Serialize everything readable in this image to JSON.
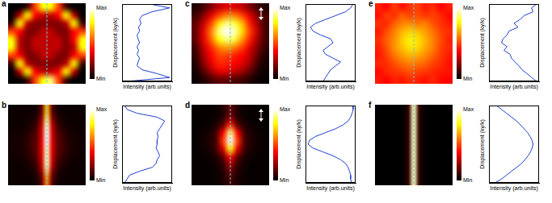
{
  "chart_data": [
    {
      "label": "a",
      "type": "line",
      "image": [
        [
          0,
          0,
          0.1,
          0.5,
          0.8,
          0.8,
          0.5,
          0.1,
          0,
          0
        ],
        [
          0,
          0.3,
          0.8,
          0.4,
          0.3,
          0.3,
          0.4,
          0.8,
          0.3,
          0
        ],
        [
          0.1,
          0.8,
          0.3,
          0.2,
          0.2,
          0.2,
          0.2,
          0.3,
          0.8,
          0.1
        ],
        [
          0.5,
          0.4,
          0.2,
          0.2,
          0.3,
          0.3,
          0.2,
          0.2,
          0.4,
          0.5
        ],
        [
          0.8,
          0.3,
          0.2,
          0.3,
          0.3,
          0.3,
          0.3,
          0.2,
          0.4,
          0.8
        ],
        [
          0.8,
          0.3,
          0.2,
          0.3,
          0.3,
          0.3,
          0.3,
          0.2,
          0.3,
          0.8
        ],
        [
          0.5,
          0.4,
          0.2,
          0.2,
          0.3,
          0.3,
          0.2,
          0.2,
          0.4,
          0.5
        ],
        [
          0.1,
          0.8,
          0.3,
          0.2,
          0.2,
          0.2,
          0.2,
          0.3,
          0.8,
          0.1
        ],
        [
          0,
          0.3,
          0.8,
          0.4,
          0.3,
          0.3,
          0.4,
          0.8,
          0.3,
          0
        ],
        [
          0,
          0,
          0.1,
          0.5,
          0.8,
          0.9,
          0.5,
          0.1,
          0,
          0
        ]
      ],
      "colorbar": {
        "range": [
          0,
          1
        ],
        "ticks": [
          {
            "value": 1,
            "label": "Max"
          },
          {
            "value": 0,
            "label": "Min"
          }
        ]
      },
      "xlabel": "Intensity (arb.units)",
      "ylabel": "Displacement (ky/k)",
      "y": [
        1,
        0.9,
        0.8,
        0.7,
        0.6,
        0.5,
        0.4,
        0.3,
        0.2,
        0.1,
        0,
        -0.1,
        -0.2,
        -0.3,
        -0.4,
        -0.5,
        -0.6,
        -0.7,
        -0.8,
        -0.9,
        -1
      ],
      "values": [
        0.55,
        0.95,
        0.6,
        0.4,
        0.35,
        0.38,
        0.33,
        0.35,
        0.3,
        0.32,
        0.35,
        0.3,
        0.33,
        0.3,
        0.35,
        0.32,
        0.3,
        0.4,
        0.7,
        0.95,
        0.1
      ],
      "xlim": [
        0,
        1
      ],
      "ylim": [
        -1,
        1
      ],
      "tick_labels": false,
      "color": "#1f3fd0"
    },
    {
      "label": "b",
      "type": "line",
      "image": [
        [
          0.02,
          0.02,
          0.02,
          0.02,
          0.02,
          0.04,
          0.15,
          0.7,
          0.15,
          0.04,
          0.02,
          0.02,
          0.02,
          0.02,
          0.02
        ],
        [
          0.02,
          0.02,
          0.02,
          0.03,
          0.05,
          0.1,
          0.3,
          0.95,
          0.3,
          0.1,
          0.05,
          0.03,
          0.02,
          0.02,
          0.02
        ],
        [
          0.03,
          0.03,
          0.04,
          0.06,
          0.1,
          0.15,
          0.35,
          1,
          0.35,
          0.15,
          0.1,
          0.06,
          0.04,
          0.03,
          0.03
        ],
        [
          0.03,
          0.03,
          0.04,
          0.06,
          0.1,
          0.15,
          0.35,
          0.95,
          0.35,
          0.15,
          0.1,
          0.06,
          0.04,
          0.03,
          0.03
        ],
        [
          0.02,
          0.02,
          0.02,
          0.03,
          0.05,
          0.1,
          0.3,
          0.95,
          0.3,
          0.1,
          0.05,
          0.03,
          0.02,
          0.02,
          0.02
        ],
        [
          0.02,
          0.02,
          0.02,
          0.02,
          0.02,
          0.04,
          0.15,
          0.6,
          0.15,
          0.04,
          0.02,
          0.02,
          0.02,
          0.02,
          0.02
        ]
      ],
      "colorbar": {
        "range": [
          0,
          1
        ],
        "ticks": [
          {
            "value": 1,
            "label": "Max"
          },
          {
            "value": 0,
            "label": "Min"
          }
        ]
      },
      "xlabel": "Intensity (arb.units)",
      "ylabel": "Displacement (ky/k)",
      "y": [
        1,
        0.9,
        0.8,
        0.7,
        0.6,
        0.5,
        0.4,
        0.3,
        0.2,
        0.1,
        0,
        -0.1,
        -0.2,
        -0.3,
        -0.4,
        -0.5,
        -0.6,
        -0.7,
        -0.8,
        -0.9,
        -1
      ],
      "values": [
        0.05,
        0.1,
        0.3,
        0.7,
        0.85,
        0.8,
        0.75,
        0.7,
        0.72,
        0.7,
        0.7,
        0.68,
        0.72,
        0.75,
        0.7,
        0.68,
        0.6,
        0.35,
        0.15,
        0.1,
        0.05
      ],
      "xlim": [
        0,
        1
      ],
      "ylim": [
        -1,
        1
      ],
      "tick_labels": false,
      "color": "#1f3fd0"
    },
    {
      "label": "c",
      "type": "line",
      "image": [
        [
          0.05,
          0.1,
          0.2,
          0.3,
          0.35,
          0.35,
          0.3,
          0.2,
          0.1,
          0.05
        ],
        [
          0.1,
          0.2,
          0.35,
          0.5,
          0.6,
          0.6,
          0.5,
          0.35,
          0.2,
          0.1
        ],
        [
          0.15,
          0.3,
          0.5,
          0.75,
          0.9,
          0.85,
          0.7,
          0.45,
          0.25,
          0.1
        ],
        [
          0.15,
          0.35,
          0.6,
          0.9,
          1,
          0.95,
          0.75,
          0.5,
          0.3,
          0.1
        ],
        [
          0.15,
          0.35,
          0.55,
          0.8,
          0.9,
          0.85,
          0.65,
          0.45,
          0.25,
          0.1
        ],
        [
          0.1,
          0.3,
          0.45,
          0.6,
          0.65,
          0.6,
          0.5,
          0.35,
          0.2,
          0.08
        ],
        [
          0.08,
          0.25,
          0.4,
          0.5,
          0.5,
          0.45,
          0.4,
          0.3,
          0.15,
          0.05
        ],
        [
          0.05,
          0.2,
          0.35,
          0.45,
          0.45,
          0.4,
          0.35,
          0.25,
          0.1,
          0.03
        ],
        [
          0.03,
          0.12,
          0.25,
          0.35,
          0.35,
          0.3,
          0.25,
          0.15,
          0.05,
          0.02
        ],
        [
          0.02,
          0.05,
          0.1,
          0.15,
          0.15,
          0.12,
          0.1,
          0.05,
          0.02,
          0.01
        ]
      ],
      "colorbar": {
        "range": [
          0,
          1
        ],
        "ticks": [
          {
            "value": 1,
            "label": "Max"
          },
          {
            "value": 0,
            "label": "Min"
          }
        ]
      },
      "xlabel": "Intensity (arb.units)",
      "ylabel": "Displacement (ky/k)",
      "y": [
        1,
        0.9,
        0.8,
        0.7,
        0.6,
        0.5,
        0.4,
        0.3,
        0.2,
        0.1,
        0,
        -0.1,
        -0.2,
        -0.3,
        -0.4,
        -0.5,
        -0.6,
        -0.7,
        -0.8,
        -0.9,
        -1
      ],
      "values": [
        0.95,
        0.9,
        0.8,
        0.6,
        0.4,
        0.2,
        0.1,
        0.15,
        0.3,
        0.5,
        0.55,
        0.45,
        0.35,
        0.4,
        0.55,
        0.7,
        0.6,
        0.5,
        0.45,
        0.4,
        0.35
      ],
      "xlim": [
        0,
        1
      ],
      "ylim": [
        -1,
        1
      ],
      "tick_labels": false,
      "color": "#1f3fd0"
    },
    {
      "label": "d",
      "type": "line",
      "image": [
        [
          0.01,
          0.01,
          0.01,
          0.02,
          0.05,
          0.15,
          0.05,
          0.02,
          0.01,
          0.01,
          0.01
        ],
        [
          0.01,
          0.01,
          0.01,
          0.02,
          0.06,
          0.2,
          0.06,
          0.02,
          0.01,
          0.01,
          0.01
        ],
        [
          0.01,
          0.01,
          0.02,
          0.05,
          0.15,
          0.45,
          0.15,
          0.05,
          0.02,
          0.01,
          0.01
        ],
        [
          0.01,
          0.02,
          0.04,
          0.1,
          0.4,
          0.9,
          0.4,
          0.1,
          0.04,
          0.02,
          0.01
        ],
        [
          0.01,
          0.02,
          0.05,
          0.12,
          0.5,
          1,
          0.5,
          0.12,
          0.05,
          0.02,
          0.01
        ],
        [
          0.01,
          0.02,
          0.04,
          0.1,
          0.35,
          0.8,
          0.35,
          0.1,
          0.04,
          0.02,
          0.01
        ],
        [
          0.01,
          0.01,
          0.02,
          0.05,
          0.15,
          0.4,
          0.15,
          0.05,
          0.02,
          0.01,
          0.01
        ],
        [
          0.01,
          0.01,
          0.01,
          0.03,
          0.08,
          0.25,
          0.08,
          0.03,
          0.01,
          0.01,
          0.01
        ],
        [
          0.01,
          0.01,
          0.01,
          0.02,
          0.05,
          0.15,
          0.05,
          0.02,
          0.01,
          0.01,
          0.01
        ],
        [
          0.01,
          0.01,
          0.01,
          0.02,
          0.04,
          0.1,
          0.04,
          0.02,
          0.01,
          0.01,
          0.01
        ]
      ],
      "colorbar": {
        "range": [
          0,
          1
        ],
        "ticks": [
          {
            "value": 1,
            "label": "Max"
          },
          {
            "value": 0,
            "label": "Min"
          }
        ]
      },
      "xlabel": "Intensity (arb.units)",
      "ylabel": "Displacement (ky/k)",
      "y": [
        1,
        0.9,
        0.8,
        0.7,
        0.6,
        0.5,
        0.4,
        0.3,
        0.2,
        0.1,
        0,
        -0.1,
        -0.2,
        -0.3,
        -0.4,
        -0.5,
        -0.6,
        -0.7,
        -0.8,
        -0.9,
        -1
      ],
      "values": [
        0.95,
        0.95,
        0.93,
        0.9,
        0.85,
        0.75,
        0.6,
        0.4,
        0.2,
        0.08,
        0.05,
        0.15,
        0.35,
        0.55,
        0.7,
        0.8,
        0.85,
        0.88,
        0.9,
        0.9,
        0.92
      ],
      "xlim": [
        0,
        1
      ],
      "ylim": [
        -1,
        1
      ],
      "tick_labels": false,
      "color": "#1f3fd0"
    },
    {
      "label": "e",
      "type": "line",
      "image": [
        [
          0.45,
          0.4,
          0.5,
          0.42,
          0.48,
          0.5,
          0.44,
          0.47,
          0.4,
          0.45
        ],
        [
          0.42,
          0.5,
          0.47,
          0.55,
          0.5,
          0.52,
          0.48,
          0.5,
          0.46,
          0.41
        ],
        [
          0.48,
          0.46,
          0.55,
          0.6,
          0.62,
          0.58,
          0.6,
          0.52,
          0.48,
          0.44
        ],
        [
          0.44,
          0.52,
          0.6,
          0.68,
          0.72,
          0.7,
          0.64,
          0.58,
          0.5,
          0.47
        ],
        [
          0.47,
          0.55,
          0.62,
          0.72,
          0.78,
          0.75,
          0.68,
          0.6,
          0.52,
          0.45
        ],
        [
          0.45,
          0.53,
          0.63,
          0.7,
          0.76,
          0.74,
          0.66,
          0.6,
          0.5,
          0.46
        ],
        [
          0.43,
          0.5,
          0.58,
          0.64,
          0.68,
          0.66,
          0.62,
          0.55,
          0.49,
          0.44
        ],
        [
          0.46,
          0.47,
          0.52,
          0.57,
          0.6,
          0.58,
          0.55,
          0.5,
          0.47,
          0.42
        ],
        [
          0.41,
          0.46,
          0.48,
          0.5,
          0.53,
          0.5,
          0.49,
          0.46,
          0.44,
          0.43
        ],
        [
          0.44,
          0.4,
          0.45,
          0.43,
          0.47,
          0.45,
          0.42,
          0.46,
          0.41,
          0.4
        ]
      ],
      "colorbar": {
        "range": [
          0,
          1
        ],
        "ticks": [
          {
            "value": 1,
            "label": "Max"
          },
          {
            "value": 0,
            "label": "Min"
          }
        ]
      },
      "xlabel": "Intensity (arb.units)",
      "ylabel": "Displacement (ky/k)",
      "y": [
        1,
        0.9,
        0.8,
        0.7,
        0.6,
        0.5,
        0.4,
        0.3,
        0.2,
        0.1,
        0,
        -0.1,
        -0.2,
        -0.3,
        -0.4,
        -0.5,
        -0.6,
        -0.7,
        -0.8,
        -0.9,
        -1
      ],
      "values": [
        0.95,
        0.85,
        0.88,
        0.7,
        0.62,
        0.5,
        0.58,
        0.4,
        0.36,
        0.28,
        0.25,
        0.36,
        0.3,
        0.42,
        0.45,
        0.52,
        0.6,
        0.66,
        0.76,
        0.85,
        0.95
      ],
      "xlim": [
        0,
        1
      ],
      "ylim": [
        -1,
        1
      ],
      "tick_labels": false,
      "color": "#1f3fd0"
    },
    {
      "label": "f",
      "type": "line",
      "image": [
        [
          0,
          0,
          0,
          0,
          0,
          0.01,
          0.08,
          0.95,
          0.08,
          0.01,
          0,
          0,
          0,
          0,
          0
        ],
        [
          0,
          0,
          0,
          0,
          0,
          0.01,
          0.08,
          0.95,
          0.08,
          0.01,
          0,
          0,
          0,
          0,
          0
        ],
        [
          0,
          0,
          0,
          0,
          0,
          0.01,
          0.08,
          0.95,
          0.08,
          0.01,
          0,
          0,
          0,
          0,
          0
        ],
        [
          0,
          0,
          0,
          0,
          0,
          0.01,
          0.08,
          0.95,
          0.08,
          0.01,
          0,
          0,
          0,
          0,
          0
        ]
      ],
      "colorbar": {
        "range": [
          0,
          1
        ],
        "ticks": [
          {
            "value": 1,
            "label": "Max"
          },
          {
            "value": 0,
            "label": "Min"
          }
        ]
      },
      "xlabel": "Intensity (arb.units)",
      "ylabel": "Displacement (ky/k)",
      "y": [
        1,
        0.9,
        0.8,
        0.7,
        0.6,
        0.5,
        0.4,
        0.3,
        0.2,
        0.1,
        0,
        -0.1,
        -0.2,
        -0.3,
        -0.4,
        -0.5,
        -0.6,
        -0.7,
        -0.8,
        -0.9,
        -1
      ],
      "values": [
        0.15,
        0.25,
        0.35,
        0.45,
        0.55,
        0.63,
        0.7,
        0.77,
        0.82,
        0.86,
        0.88,
        0.86,
        0.83,
        0.78,
        0.72,
        0.65,
        0.55,
        0.45,
        0.35,
        0.25,
        0.12
      ],
      "xlim": [
        0,
        1
      ],
      "ylim": [
        -1,
        1
      ],
      "tick_labels": false,
      "color": "#1f3fd0"
    }
  ]
}
